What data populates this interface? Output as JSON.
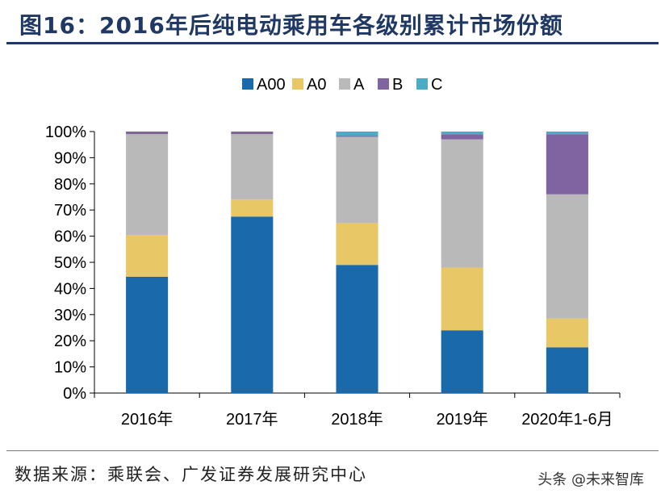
{
  "title": "图16：2016年后纯电动乘用车各级别累计市场份额",
  "source": "数据来源：乘联会、广发证券发展研究中心",
  "watermark": "头条 @未来智库",
  "colors": {
    "A00": "#1a6aab",
    "A0": "#e8c767",
    "A": "#b9b9b9",
    "B": "#8064a2",
    "C": "#4bacc6",
    "title": "#1f3864"
  },
  "chart_data": {
    "type": "bar",
    "stacked": true,
    "categories": [
      "2016年",
      "2017年",
      "2018年",
      "2019年",
      "2020年1-6月"
    ],
    "series": [
      {
        "name": "A00",
        "values": [
          44.5,
          67.5,
          49,
          24,
          17.5
        ]
      },
      {
        "name": "A0",
        "values": [
          16,
          6.5,
          16,
          24,
          11
        ]
      },
      {
        "name": "A",
        "values": [
          38.5,
          25,
          33,
          49,
          47.5
        ]
      },
      {
        "name": "B",
        "values": [
          1,
          1,
          0.3,
          2,
          23
        ]
      },
      {
        "name": "C",
        "values": [
          0,
          0,
          1.7,
          1,
          1
        ]
      }
    ],
    "ylim": [
      0,
      100
    ],
    "yticks": [
      "0%",
      "10%",
      "20%",
      "30%",
      "40%",
      "50%",
      "60%",
      "70%",
      "80%",
      "90%",
      "100%"
    ],
    "legend_position": "top",
    "grid": false
  }
}
